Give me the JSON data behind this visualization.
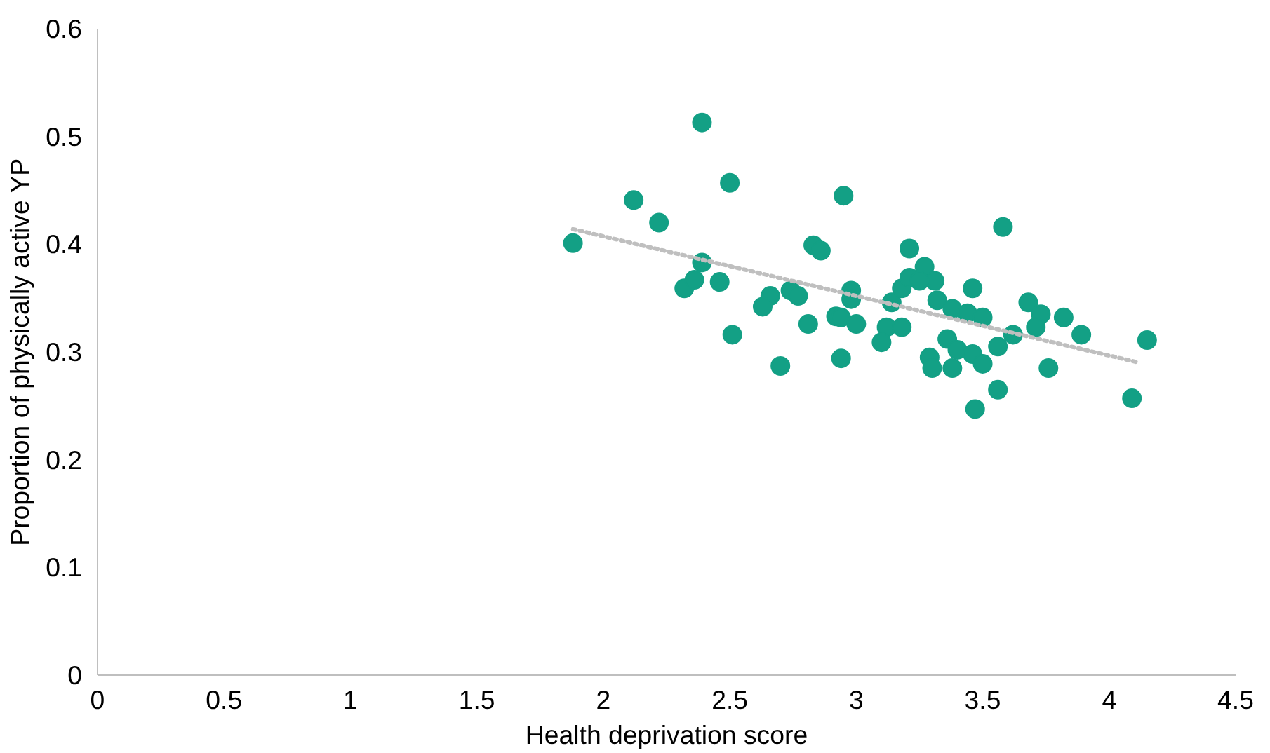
{
  "chart_data": {
    "type": "scatter",
    "xlabel": "Health deprivation score",
    "ylabel": "Proportion of physically active YP",
    "xlim": [
      0,
      4.5
    ],
    "xticks": [
      0,
      0.5,
      1,
      1.5,
      2,
      2.5,
      3,
      3.5,
      4,
      4.5
    ],
    "ylim": [
      0,
      0.6
    ],
    "yticks": [
      0,
      0.1,
      0.2,
      0.3,
      0.4,
      0.5,
      0.6
    ],
    "grid": false,
    "series": [
      {
        "marker": "circle",
        "color": "#13a085",
        "x": [
          1.88,
          2.12,
          2.22,
          2.39,
          2.39,
          2.46,
          2.32,
          2.36,
          2.51,
          2.5,
          2.74,
          2.77,
          2.66,
          2.63,
          2.81,
          2.92,
          2.94,
          3.0,
          2.98,
          2.98,
          2.7,
          2.94,
          2.83,
          2.86,
          2.95,
          3.21,
          3.58,
          3.12,
          3.1,
          3.18,
          3.14,
          3.18,
          3.21,
          3.27,
          3.31,
          3.25,
          3.32,
          3.38,
          3.44,
          3.5,
          3.36,
          3.4,
          3.46,
          3.5,
          3.29,
          3.3,
          3.38,
          3.46,
          3.56,
          3.62,
          3.56,
          3.47,
          3.68,
          3.73,
          3.71,
          3.82,
          3.89,
          3.76,
          4.09,
          4.15
        ],
        "values": [
          0.401,
          0.441,
          0.42,
          0.513,
          0.383,
          0.365,
          0.359,
          0.367,
          0.316,
          0.457,
          0.357,
          0.352,
          0.352,
          0.342,
          0.326,
          0.333,
          0.332,
          0.326,
          0.357,
          0.349,
          0.287,
          0.294,
          0.399,
          0.394,
          0.445,
          0.396,
          0.416,
          0.323,
          0.309,
          0.323,
          0.346,
          0.359,
          0.369,
          0.379,
          0.366,
          0.366,
          0.348,
          0.34,
          0.336,
          0.332,
          0.312,
          0.302,
          0.298,
          0.289,
          0.295,
          0.285,
          0.285,
          0.359,
          0.305,
          0.316,
          0.265,
          0.247,
          0.346,
          0.335,
          0.323,
          0.332,
          0.316,
          0.285,
          0.257,
          0.311
        ]
      },
      {
        "type": "line",
        "color": "#bfbfbf",
        "line_style": "dotted",
        "x": [
          1.88,
          4.12
        ],
        "values": [
          0.414,
          0.29
        ]
      }
    ]
  }
}
